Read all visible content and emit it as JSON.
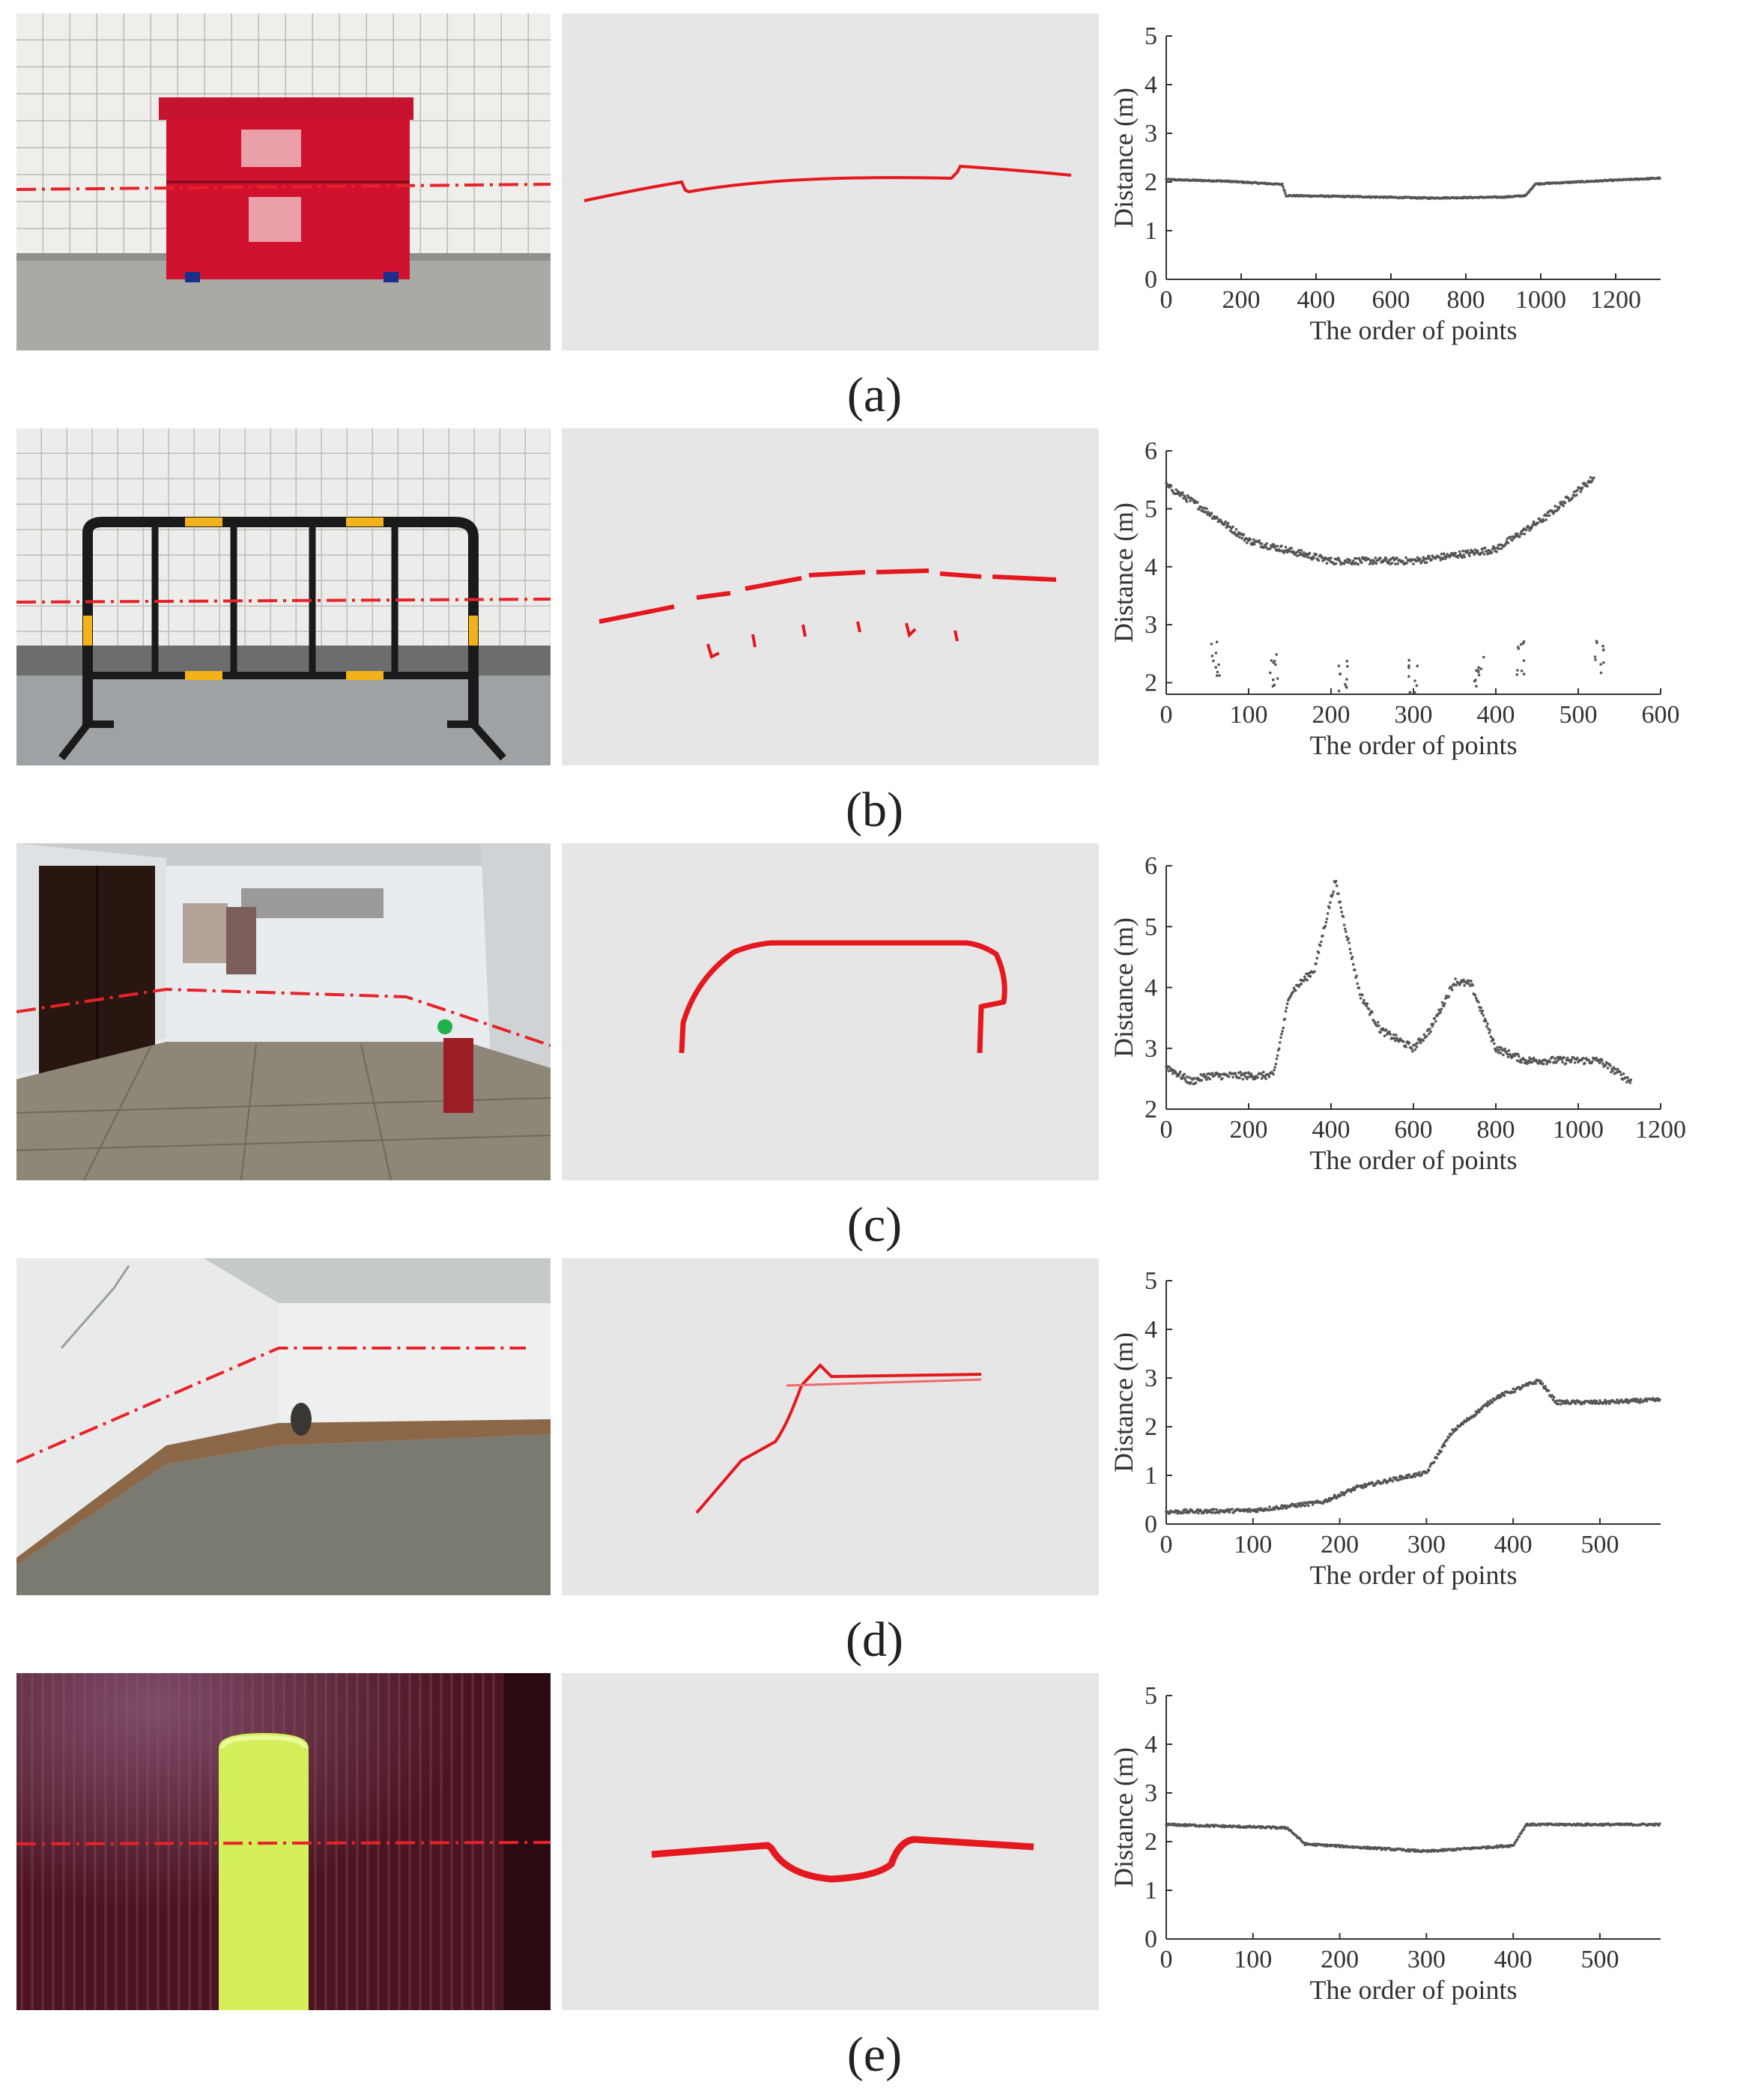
{
  "panels": [
    {
      "caption": "(a)",
      "photo_subject": "red-cabinet",
      "chart_data": {
        "type": "scatter",
        "xlabel": "The order of points",
        "ylabel": "Distance (m)",
        "xlim": [
          0,
          1320
        ],
        "ylim": [
          0,
          5
        ],
        "xticks": [
          0,
          200,
          400,
          600,
          800,
          1000,
          1200
        ],
        "yticks": [
          0,
          1,
          2,
          3,
          4,
          5
        ],
        "points_total": 1320,
        "profile": [
          [
            0,
            2.05
          ],
          [
            150,
            2.02
          ],
          [
            310,
            1.95
          ],
          [
            320,
            1.72
          ],
          [
            500,
            1.7
          ],
          [
            700,
            1.67
          ],
          [
            900,
            1.69
          ],
          [
            960,
            1.72
          ],
          [
            985,
            1.96
          ],
          [
            1150,
            2.02
          ],
          [
            1320,
            2.08
          ]
        ],
        "noise": 0.012,
        "clusters": []
      }
    },
    {
      "caption": "(b)",
      "photo_subject": "barrier",
      "chart_data": {
        "type": "scatter",
        "xlabel": "The order of points",
        "ylabel": "Distance (m)",
        "xlim": [
          0,
          600
        ],
        "ylim": [
          1.8,
          6
        ],
        "xticks": [
          0,
          100,
          200,
          300,
          400,
          500,
          600
        ],
        "yticks": [
          2,
          3,
          4,
          5,
          6
        ],
        "points_total": 520,
        "profile": [
          [
            0,
            5.4
          ],
          [
            40,
            5.05
          ],
          [
            100,
            4.45
          ],
          [
            200,
            4.1
          ],
          [
            300,
            4.1
          ],
          [
            400,
            4.3
          ],
          [
            460,
            4.85
          ],
          [
            520,
            5.55
          ]
        ],
        "noise": 0.06,
        "clusters": [
          [
            60,
            2.3
          ],
          [
            130,
            2.1
          ],
          [
            215,
            2.0
          ],
          [
            300,
            2.0
          ],
          [
            380,
            2.1
          ],
          [
            430,
            2.3
          ],
          [
            525,
            2.3
          ]
        ]
      }
    },
    {
      "caption": "(c)",
      "photo_subject": "corridor",
      "chart_data": {
        "type": "scatter",
        "xlabel": "The order of points",
        "ylabel": "Distance (m)",
        "xlim": [
          0,
          1200
        ],
        "ylim": [
          2,
          6
        ],
        "xticks": [
          0,
          200,
          400,
          600,
          800,
          1000,
          1200
        ],
        "yticks": [
          2,
          3,
          4,
          5,
          6
        ],
        "points_total": 1130,
        "profile": [
          [
            0,
            2.7
          ],
          [
            60,
            2.45
          ],
          [
            100,
            2.55
          ],
          [
            260,
            2.55
          ],
          [
            300,
            3.9
          ],
          [
            360,
            4.3
          ],
          [
            410,
            5.75
          ],
          [
            470,
            3.9
          ],
          [
            520,
            3.3
          ],
          [
            600,
            3.0
          ],
          [
            640,
            3.3
          ],
          [
            700,
            4.1
          ],
          [
            740,
            4.05
          ],
          [
            800,
            3.0
          ],
          [
            870,
            2.8
          ],
          [
            1050,
            2.8
          ],
          [
            1130,
            2.45
          ]
        ],
        "noise": 0.06,
        "clusters": []
      }
    },
    {
      "caption": "(d)",
      "photo_subject": "room-corner",
      "chart_data": {
        "type": "scatter",
        "xlabel": "The order of points",
        "ylabel": "Distance (m)",
        "xlim": [
          0,
          570
        ],
        "ylim": [
          0,
          5
        ],
        "xticks": [
          0,
          100,
          200,
          300,
          400,
          500
        ],
        "yticks": [
          0,
          1,
          2,
          3,
          4,
          5
        ],
        "points_total": 570,
        "profile": [
          [
            0,
            0.25
          ],
          [
            100,
            0.28
          ],
          [
            180,
            0.45
          ],
          [
            220,
            0.75
          ],
          [
            270,
            0.95
          ],
          [
            300,
            1.05
          ],
          [
            330,
            1.9
          ],
          [
            380,
            2.6
          ],
          [
            430,
            2.95
          ],
          [
            450,
            2.5
          ],
          [
            500,
            2.5
          ],
          [
            570,
            2.55
          ]
        ],
        "noise": 0.04,
        "clusters": []
      }
    },
    {
      "caption": "(e)",
      "photo_subject": "cylinder",
      "chart_data": {
        "type": "scatter",
        "xlabel": "The order of points",
        "ylabel": "Distance (m)",
        "xlim": [
          0,
          570
        ],
        "ylim": [
          0,
          5
        ],
        "xticks": [
          0,
          100,
          200,
          300,
          400,
          500
        ],
        "yticks": [
          0,
          1,
          2,
          3,
          4,
          5
        ],
        "points_total": 570,
        "profile": [
          [
            0,
            2.35
          ],
          [
            140,
            2.28
          ],
          [
            160,
            1.95
          ],
          [
            300,
            1.8
          ],
          [
            400,
            1.92
          ],
          [
            415,
            2.35
          ],
          [
            570,
            2.35
          ]
        ],
        "noise": 0.02,
        "clusters": []
      }
    }
  ]
}
